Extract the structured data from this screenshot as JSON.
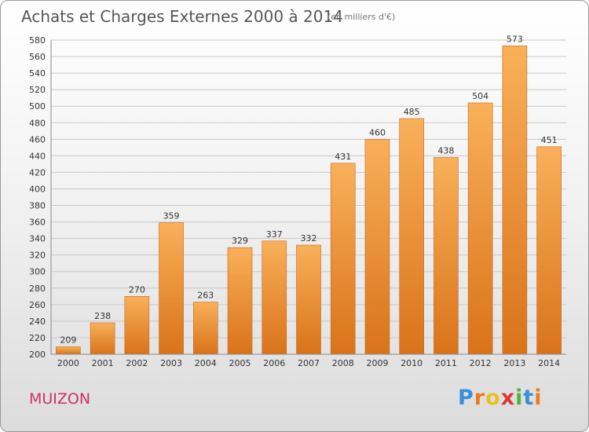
{
  "title": "Achats et Charges Externes 2000 à 2014",
  "subtitle": "(en milliers d'€)",
  "commune": "MUIZON",
  "logo": {
    "letters": [
      "P",
      "r",
      "o",
      "x",
      "i",
      "t",
      "i"
    ],
    "colors": [
      "#3a8fd6",
      "#ee7a1d",
      "#e9c21f",
      "#d93838",
      "#4db33d",
      "#3a8fd6",
      "#ee7a1d"
    ]
  },
  "colors": {
    "bar_light": "#f9b05a",
    "bar_dark": "#d9731a",
    "grid": "#c8c8c8",
    "axis_text": "#333333"
  },
  "chart_data": {
    "type": "bar",
    "title": "Achats et Charges Externes 2000 à 2014",
    "categories": [
      "2000",
      "2001",
      "2002",
      "2003",
      "2004",
      "2005",
      "2006",
      "2007",
      "2008",
      "2009",
      "2010",
      "2011",
      "2012",
      "2013",
      "2014"
    ],
    "values": [
      209,
      238,
      270,
      359,
      263,
      329,
      337,
      332,
      431,
      460,
      485,
      438,
      504,
      573,
      451
    ],
    "ylim": [
      200,
      580
    ],
    "yticks": [
      200,
      220,
      240,
      260,
      280,
      300,
      320,
      340,
      360,
      380,
      400,
      420,
      440,
      460,
      480,
      500,
      520,
      540,
      560,
      580
    ],
    "grid": true,
    "data_labels": true
  }
}
